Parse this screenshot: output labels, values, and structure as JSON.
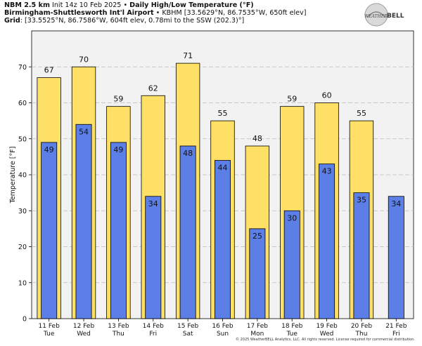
{
  "header": {
    "line1_prefix": "NBM 2.5 km",
    "line1_init": "Init 14z 10 Feb 2025",
    "line1_bullet": " • ",
    "line1_title": "Daily High/Low Temperature (°F)",
    "line2_name": "Birmingham-Shuttlesworth Int'l Airport",
    "line2_rest": " • KBHM [33.5629°N, 86.7535°W, 650ft elev]",
    "line3_label": "Grid",
    "line3_rest": ": [33.5525°N, 86.7586°W, 604ft elev, 0.78mi to the SSW (202.3)°]"
  },
  "logo": {
    "text_weather": "WEATHER",
    "text_bell": "BELL"
  },
  "footer": {
    "text": "© 2025 WeatherBELL Analytics, LLC. All rights reserved. License required for commercial distribution."
  },
  "colors": {
    "high": "#FFE066",
    "low": "#5B7FE6",
    "plot_bg": "#F2F2F2",
    "grid": "#BBBBBB"
  },
  "chart_data": {
    "type": "bar",
    "title": "Daily High/Low Temperature (°F)",
    "ylabel": "Temperature [°F]",
    "ylim": [
      0,
      80
    ],
    "yticks": [
      0,
      10,
      20,
      30,
      40,
      50,
      60,
      70
    ],
    "grid": true,
    "categories": [
      {
        "date": "11 Feb",
        "day": "Tue"
      },
      {
        "date": "12 Feb",
        "day": "Wed"
      },
      {
        "date": "13 Feb",
        "day": "Thu"
      },
      {
        "date": "14 Feb",
        "day": "Fri"
      },
      {
        "date": "15 Feb",
        "day": "Sat"
      },
      {
        "date": "16 Feb",
        "day": "Sun"
      },
      {
        "date": "17 Feb",
        "day": "Mon"
      },
      {
        "date": "18 Feb",
        "day": "Tue"
      },
      {
        "date": "19 Feb",
        "day": "Wed"
      },
      {
        "date": "20 Feb",
        "day": "Thu"
      },
      {
        "date": "21 Feb",
        "day": "Fri"
      }
    ],
    "series": [
      {
        "values": [
          67,
          70,
          59,
          62,
          71,
          55,
          48,
          59,
          60,
          55,
          null
        ],
        "labels": [
          "67",
          "70",
          "59",
          "62",
          "71",
          "55",
          "48",
          "59",
          "60",
          "55",
          ""
        ]
      },
      {
        "values": [
          49,
          54,
          49,
          34,
          48,
          44,
          25,
          30,
          43,
          35,
          34
        ],
        "labels": [
          "49",
          "54",
          "49",
          "34",
          "48",
          "44",
          "25",
          "30",
          "43",
          "35",
          "34"
        ]
      }
    ]
  }
}
